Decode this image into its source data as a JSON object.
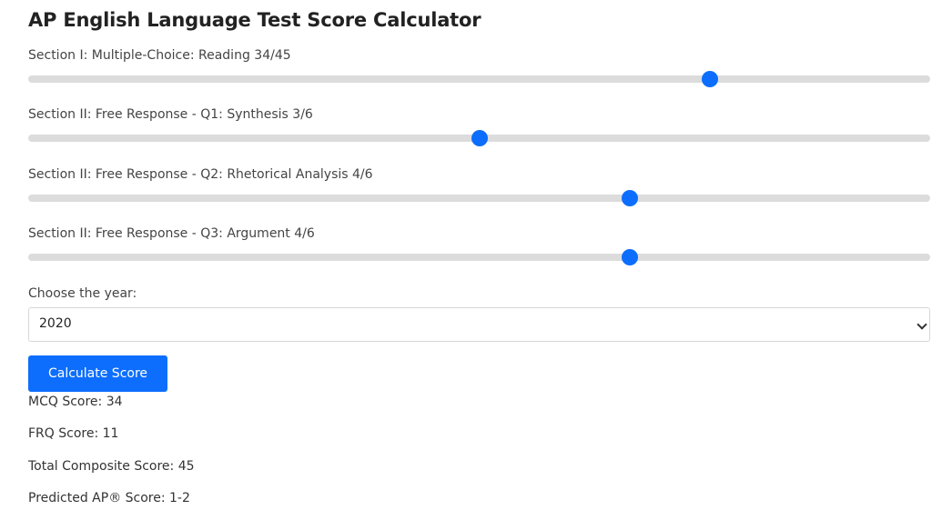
{
  "page": {
    "title": "AP English Language Test Score Calculator"
  },
  "sliders": [
    {
      "label": "Section I: Multiple-Choice: Reading 34/45",
      "value": 34,
      "max": 45
    },
    {
      "label": "Section II: Free Response - Q1: Synthesis 3/6",
      "value": 3,
      "max": 6
    },
    {
      "label": "Section II: Free Response - Q2: Rhetorical Analysis 4/6",
      "value": 4,
      "max": 6
    },
    {
      "label": "Section II: Free Response - Q3: Argument 4/6",
      "value": 4,
      "max": 6
    }
  ],
  "year": {
    "label": "Choose the year:",
    "selected": "2020"
  },
  "calculate_button": {
    "label": "Calculate Score"
  },
  "results": {
    "mcq": "MCQ Score: 34",
    "frq": "FRQ Score: 11",
    "composite": "Total Composite Score: 45",
    "predicted": "Predicted AP® Score: 1-2"
  },
  "colors": {
    "accent": "#0d6efd",
    "track": "#dcdcdc"
  }
}
